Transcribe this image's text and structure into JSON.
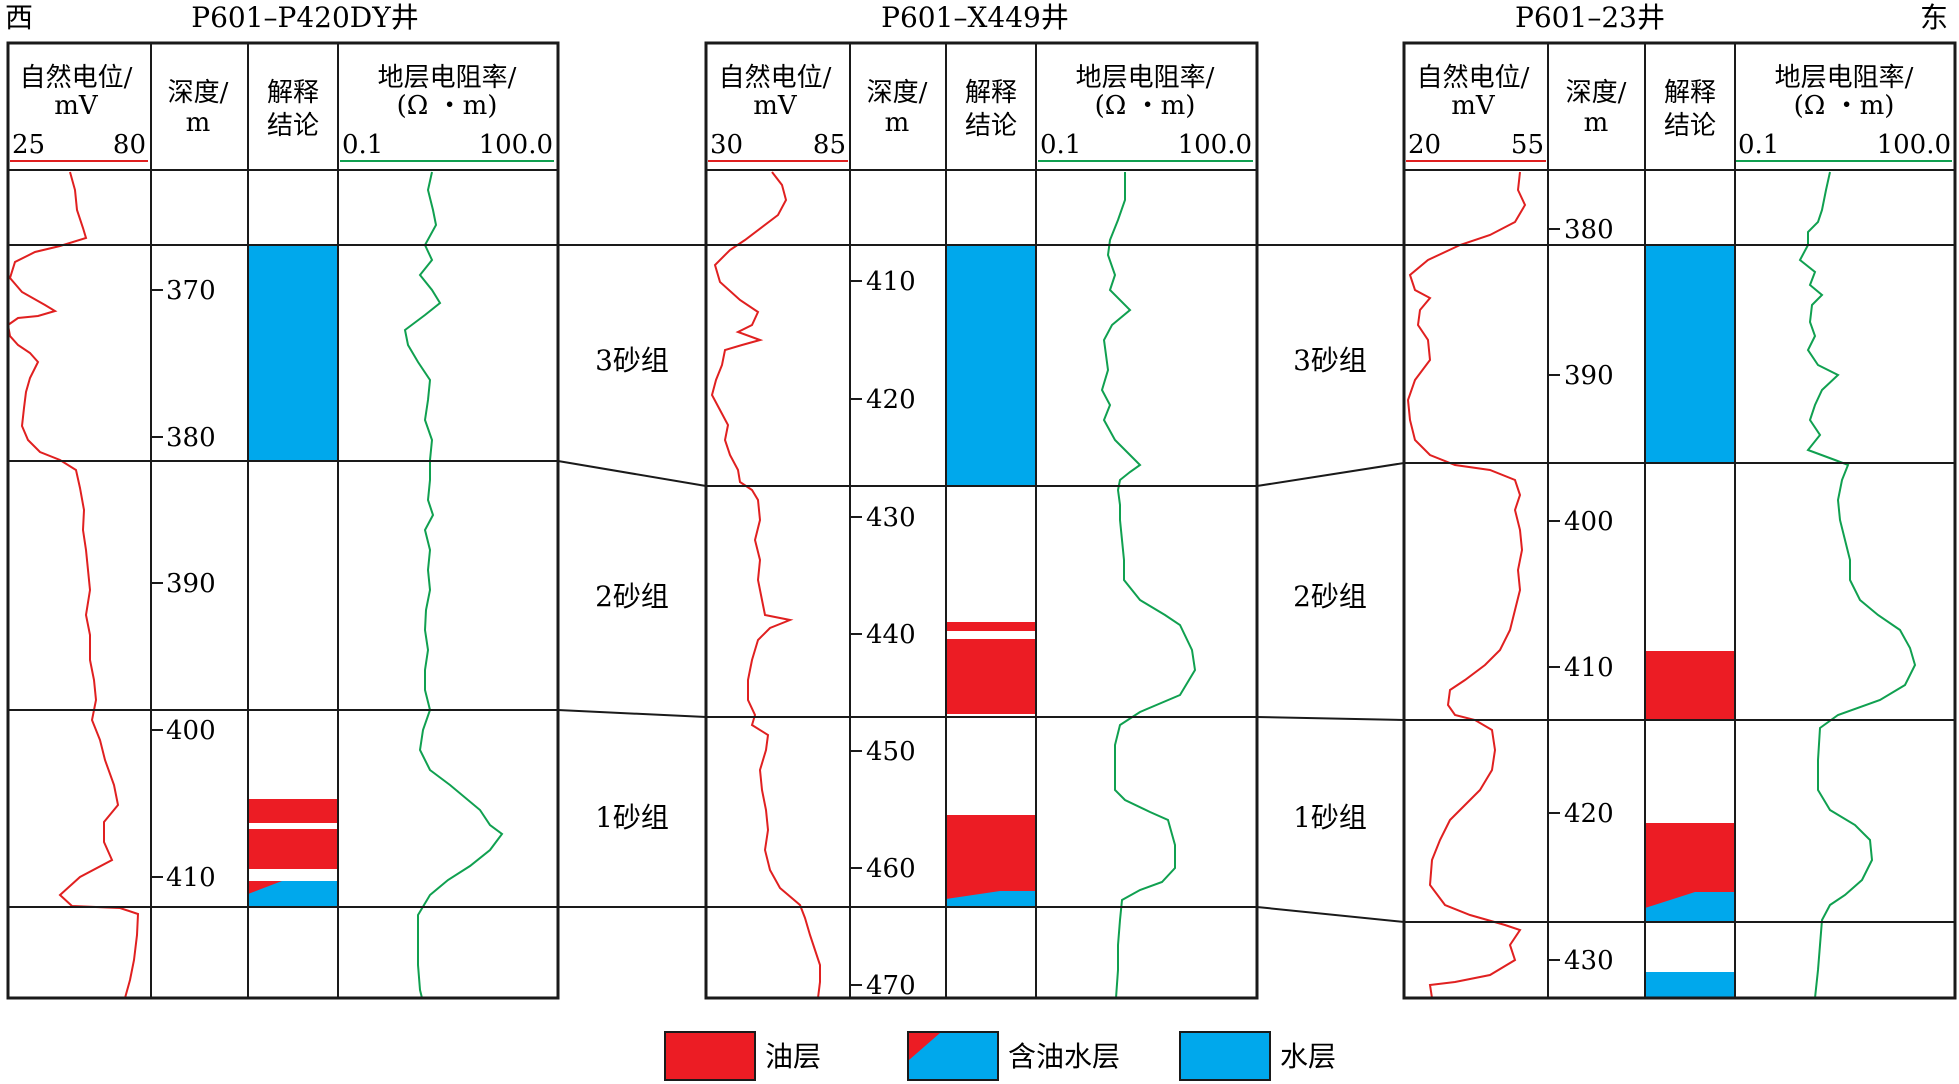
{
  "direction": {
    "west": "西",
    "east": "东"
  },
  "sections_header": {
    "sp": [
      "自然电位/",
      "mV"
    ],
    "depth": [
      "深度/",
      "m"
    ],
    "interp": [
      "解释",
      "结论"
    ],
    "res": [
      "地层电阻率/",
      "(Ω ・m)"
    ]
  },
  "wells": [
    {
      "name": "P601–P420DY井",
      "sp_range": [
        "25",
        "80"
      ],
      "res_range": [
        "0.1",
        "100.0"
      ],
      "depth_ticks": [
        370,
        380,
        390,
        400,
        410
      ]
    },
    {
      "name": "P601–X449井",
      "sp_range": [
        "30",
        "85"
      ],
      "res_range": [
        "0.1",
        "100.0"
      ],
      "depth_ticks": [
        410,
        420,
        430,
        440,
        450,
        460,
        470
      ]
    },
    {
      "name": "P601–23井",
      "sp_range": [
        "20",
        "55"
      ],
      "res_range": [
        "0.1",
        "100.0"
      ],
      "depth_ticks": [
        380,
        390,
        400,
        410,
        420,
        430
      ]
    }
  ],
  "sand_groups": [
    "3砂组",
    "2砂组",
    "1砂组"
  ],
  "legend": [
    {
      "label": "油层",
      "type": "oil"
    },
    {
      "label": "含油水层",
      "type": "oil-water"
    },
    {
      "label": "水层",
      "type": "water"
    }
  ],
  "colors": {
    "oil": "#ec1c24",
    "water": "#00a8ec",
    "sp_curve": "#e02020",
    "res_curve": "#10a050",
    "frame": "#1a1a1a"
  }
}
